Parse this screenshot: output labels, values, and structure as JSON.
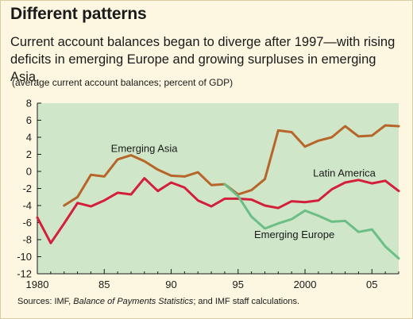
{
  "title": "Different patterns",
  "subtitle": "Current account balances began to diverge after 1997—with rising deficits in emerging Europe and growing surpluses in emerging Asia.",
  "note": "(average current account balances; percent of GDP)",
  "source": {
    "prefix": "Sources: IMF, ",
    "italic": "Balance of Payments Statistics",
    "suffix": "; and IMF staff calculations."
  },
  "colors": {
    "plot_bg": "#cfe6c8",
    "emerging_asia": "#b8652a",
    "latin_america": "#d41f3c",
    "emerging_europe": "#6bbf86"
  },
  "chart_data": {
    "type": "line",
    "xlim": [
      1980,
      2007
    ],
    "ylim": [
      -12,
      8
    ],
    "xticks": [
      1980,
      1985,
      1990,
      1995,
      2000,
      2005
    ],
    "xtick_labels": [
      "1980",
      "85",
      "90",
      "95",
      "2000",
      "05"
    ],
    "yticks": [
      8,
      6,
      4,
      2,
      0,
      -2,
      -4,
      -6,
      -8,
      -10,
      -12
    ],
    "grid": false,
    "legend": "inline labels",
    "series": [
      {
        "name": "Emerging Asia",
        "color": "#b8652a",
        "label_at": [
          1985.5,
          2.3
        ],
        "x": [
          1982,
          1983,
          1984,
          1985,
          1986,
          1987,
          1988,
          1989,
          1990,
          1991,
          1992,
          1993,
          1994,
          1995,
          1996,
          1997,
          1998,
          1999,
          2000,
          2001,
          2002,
          2003,
          2004,
          2005,
          2006,
          2007
        ],
        "y": [
          -4.0,
          -3.0,
          -0.4,
          -0.6,
          1.4,
          1.9,
          1.2,
          0.2,
          -0.5,
          -0.6,
          -0.1,
          -1.6,
          -1.5,
          -2.7,
          -2.2,
          -0.9,
          4.8,
          4.6,
          2.9,
          3.6,
          4.0,
          5.3,
          4.1,
          4.2,
          5.4,
          5.3
        ]
      },
      {
        "name": "Latin America",
        "color": "#d41f3c",
        "label_at": [
          2000.6,
          -0.6
        ],
        "x": [
          1980,
          1981,
          1982,
          1983,
          1984,
          1985,
          1986,
          1987,
          1988,
          1989,
          1990,
          1991,
          1992,
          1993,
          1994,
          1995,
          1996,
          1997,
          1998,
          1999,
          2000,
          2001,
          2002,
          2003,
          2004,
          2005,
          2006,
          2007
        ],
        "y": [
          -5.4,
          -8.4,
          -6.1,
          -3.7,
          -4.1,
          -3.4,
          -2.5,
          -2.7,
          -0.8,
          -2.3,
          -1.3,
          -1.9,
          -3.4,
          -4.1,
          -3.2,
          -3.2,
          -3.3,
          -4.0,
          -4.3,
          -3.5,
          -3.6,
          -3.4,
          -2.1,
          -1.3,
          -1.0,
          -1.4,
          -1.1,
          -2.3
        ]
      },
      {
        "name": "Emerging Europe",
        "color": "#6bbf86",
        "label_at": [
          1996.2,
          -7.8
        ],
        "x": [
          1994,
          1995,
          1996,
          1997,
          1998,
          1999,
          2000,
          2001,
          2002,
          2003,
          2004,
          2005,
          2006,
          2007
        ],
        "y": [
          -1.5,
          -2.9,
          -5.3,
          -6.7,
          -6.1,
          -5.6,
          -4.6,
          -5.2,
          -5.9,
          -5.8,
          -7.1,
          -6.8,
          -8.8,
          -10.2
        ]
      }
    ]
  }
}
